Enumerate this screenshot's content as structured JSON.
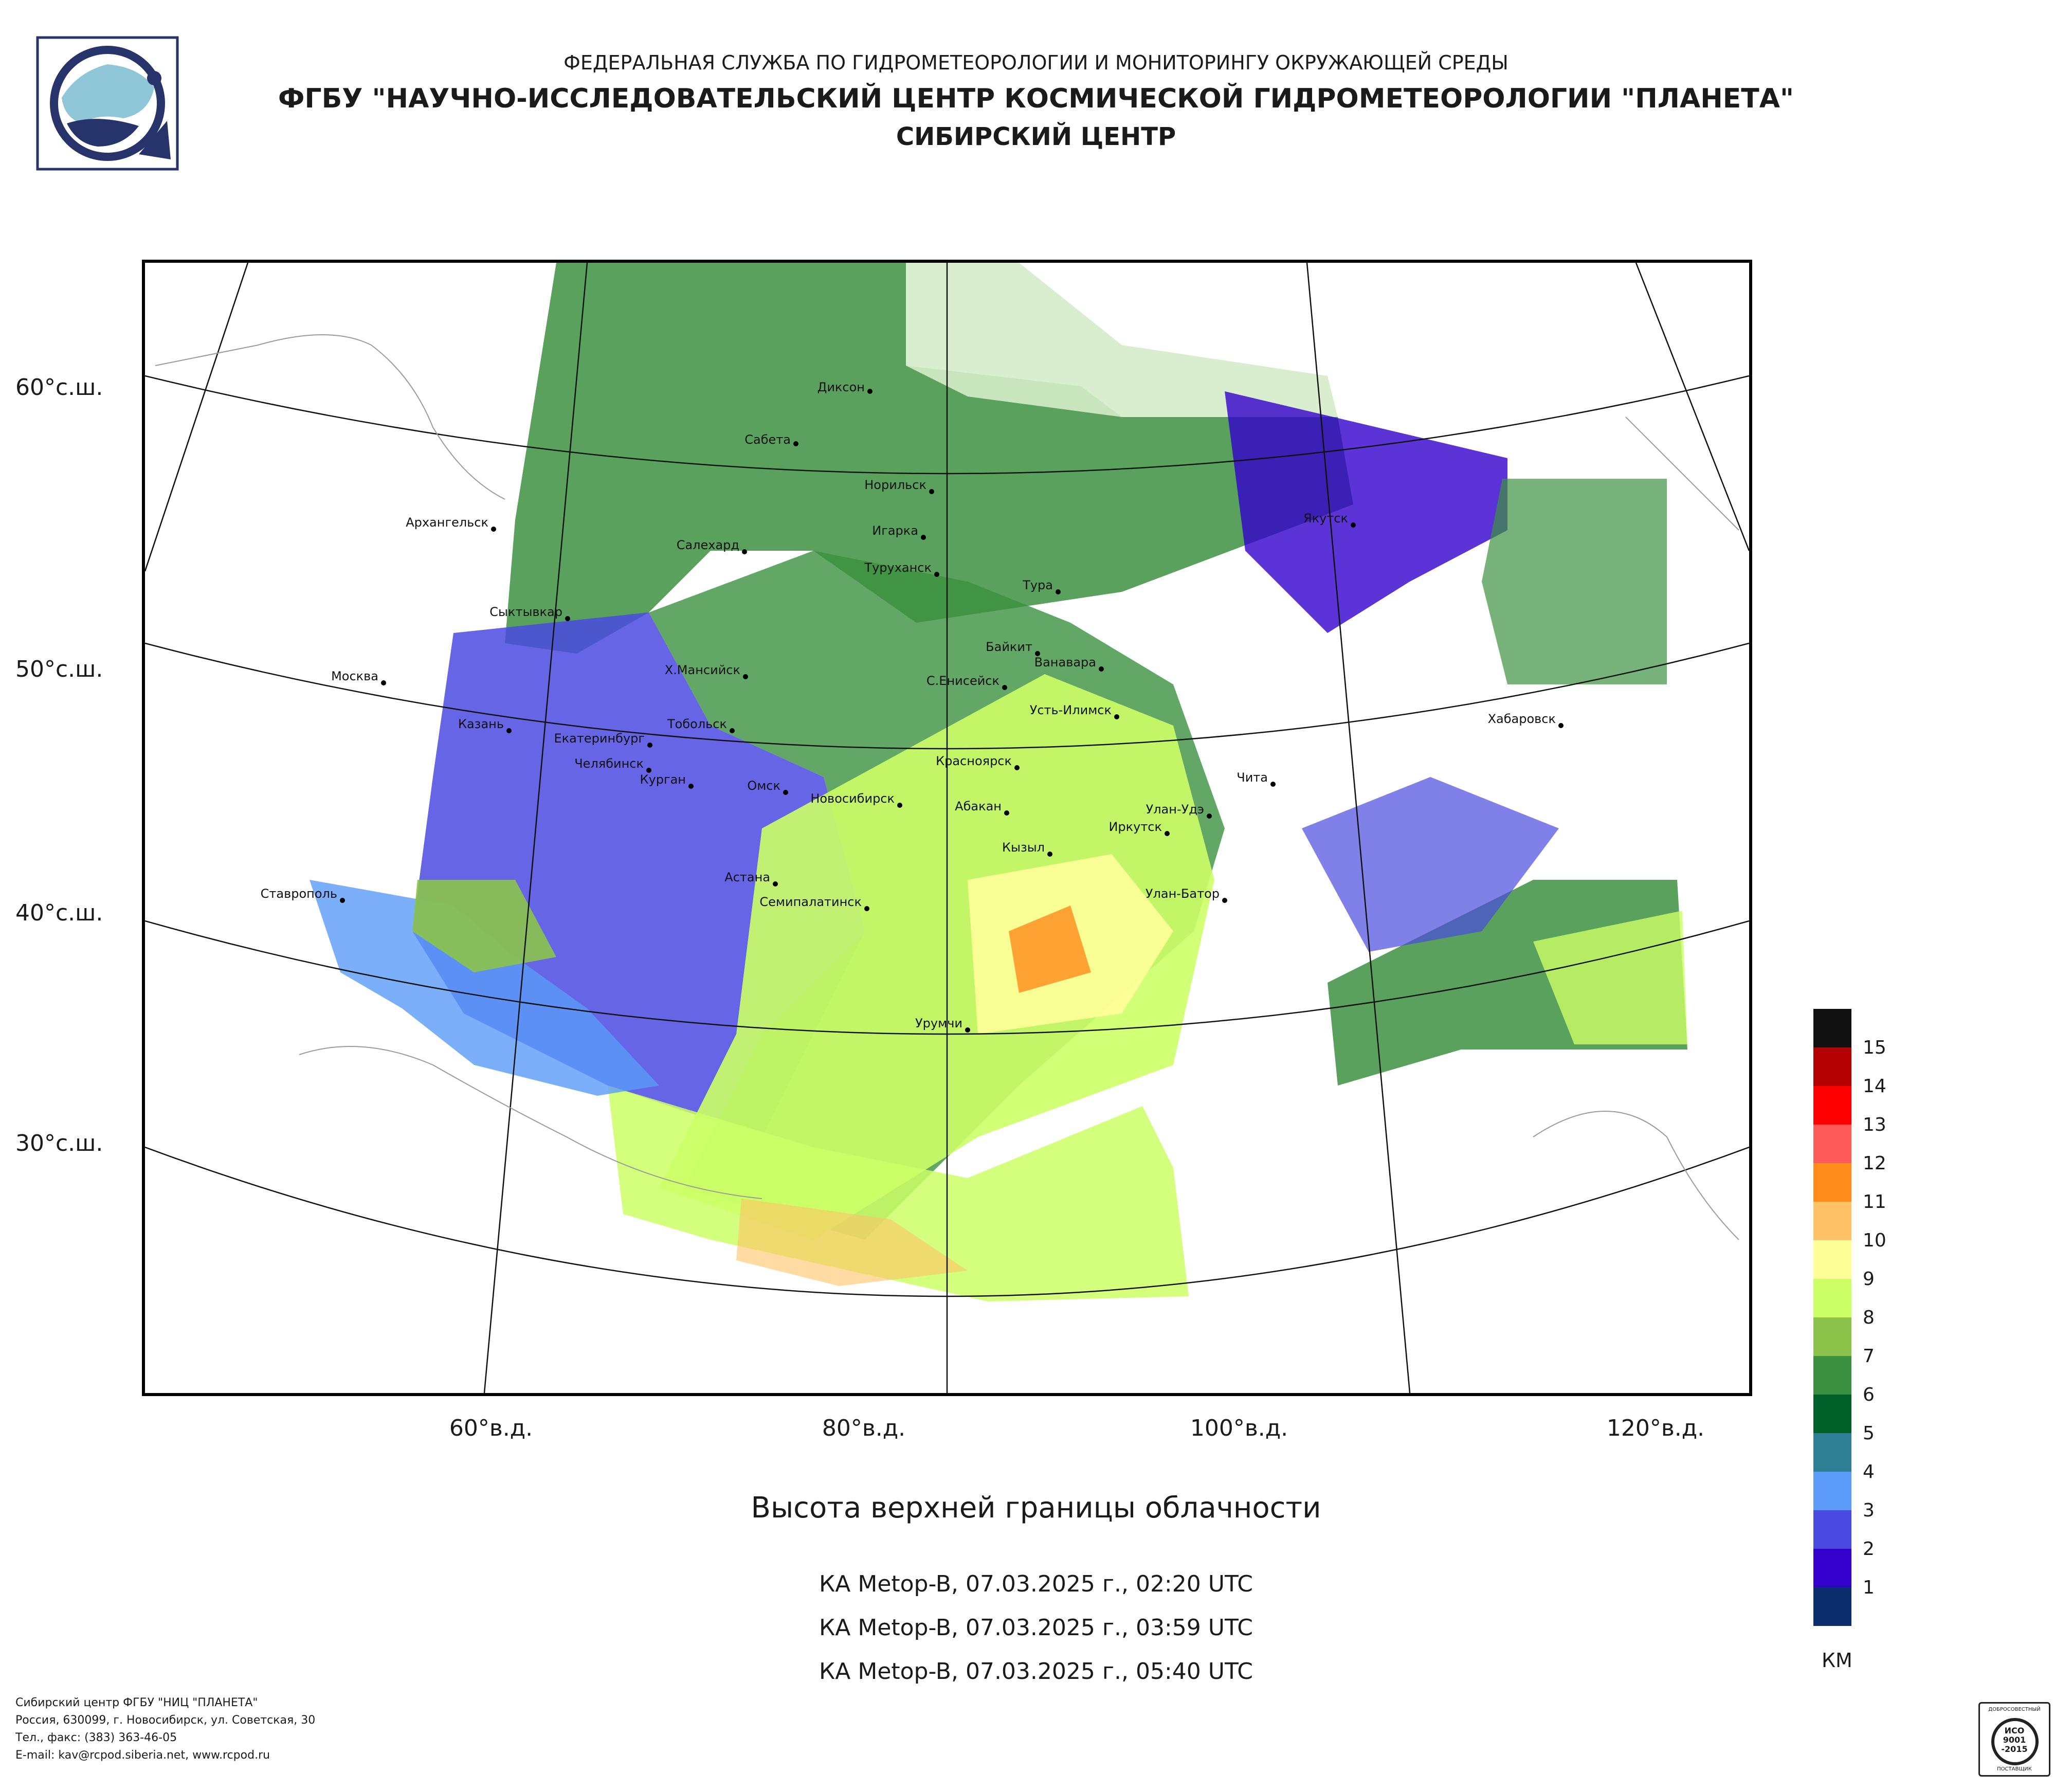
{
  "header": {
    "agency": "ФЕДЕРАЛЬНАЯ СЛУЖБА ПО ГИДРОМЕТЕОРОЛОГИИ И МОНИТОРИНГУ ОКРУЖАЮЩЕЙ СРЕДЫ",
    "institute": "ФГБУ \"НАУЧНО-ИССЛЕДОВАТЕЛЬСКИЙ ЦЕНТР КОСМИЧЕСКОЙ ГИДРОМЕТЕОРОЛОГИИ \"ПЛАНЕТА\"",
    "center": "СИБИРСКИЙ ЦЕНТР"
  },
  "map": {
    "lat_labels": [
      "60°с.ш.",
      "50°с.ш.",
      "40°с.ш.",
      "30°с.ш."
    ],
    "lon_labels": [
      "60°в.д.",
      "80°в.д.",
      "100°в.д.",
      "120°в.д."
    ],
    "cities": [
      "Диксон",
      "Сабета",
      "Норильск",
      "Архангельск",
      "Игарка",
      "Салехард",
      "Туруханск",
      "Якутск",
      "Тура",
      "Сыктывкар",
      "Байкит",
      "Ванавара",
      "Москва",
      "Х.Мансийск",
      "С.Енисейск",
      "Усть-Илимск",
      "Хабаровск",
      "Казань",
      "Тобольск",
      "Екатеринбург",
      "Красноярск",
      "Челябинск",
      "Чита",
      "Курган",
      "Омск",
      "Новосибирск",
      "Абакан",
      "Улан-Удэ",
      "Иркутск",
      "Кызыл",
      "Астана",
      "Ставрополь",
      "Улан-Батор",
      "Семипалатинск",
      "Урумчи"
    ]
  },
  "title": "Высота верхней границы облачности",
  "passes": [
    "КА Metop-B, 07.03.2025 г., 02:20 UTC",
    "КА Metop-B, 07.03.2025 г., 03:59 UTC",
    "КА Metop-B, 07.03.2025 г., 05:40 UTC"
  ],
  "legend": {
    "unit": "КМ",
    "labels": [
      "15",
      "14",
      "13",
      "12",
      "11",
      "10",
      "9",
      "8",
      "7",
      "6",
      "5",
      "4",
      "3",
      "2",
      "1"
    ],
    "colors": [
      "#111111",
      "#b30000",
      "#ff0000",
      "#ff5a5a",
      "#ff8c1a",
      "#ffc266",
      "#ffff99",
      "#ccff66",
      "#8bc34a",
      "#3c9140",
      "#00602a",
      "#2f7f94",
      "#5b9bf7",
      "#4a4ae0",
      "#3300cc",
      "#0b2d6b"
    ]
  },
  "footer": {
    "lines": [
      "Сибирский центр ФГБУ \"НИЦ \"ПЛАНЕТА\"",
      "Россия, 630099, г. Новосибирск, ул. Советская, 30",
      "Тел., факс: (383) 363-46-05",
      "E-mail: kav@rcpod.siberia.net, www.rcpod.ru"
    ]
  },
  "certificate": {
    "top_text": "ДОБРОСОВЕСТНЫЙ",
    "line1": "ИСО",
    "line2": "9001",
    "line3": "-2015",
    "bottom_text": "ПОСТАВЩИК"
  }
}
